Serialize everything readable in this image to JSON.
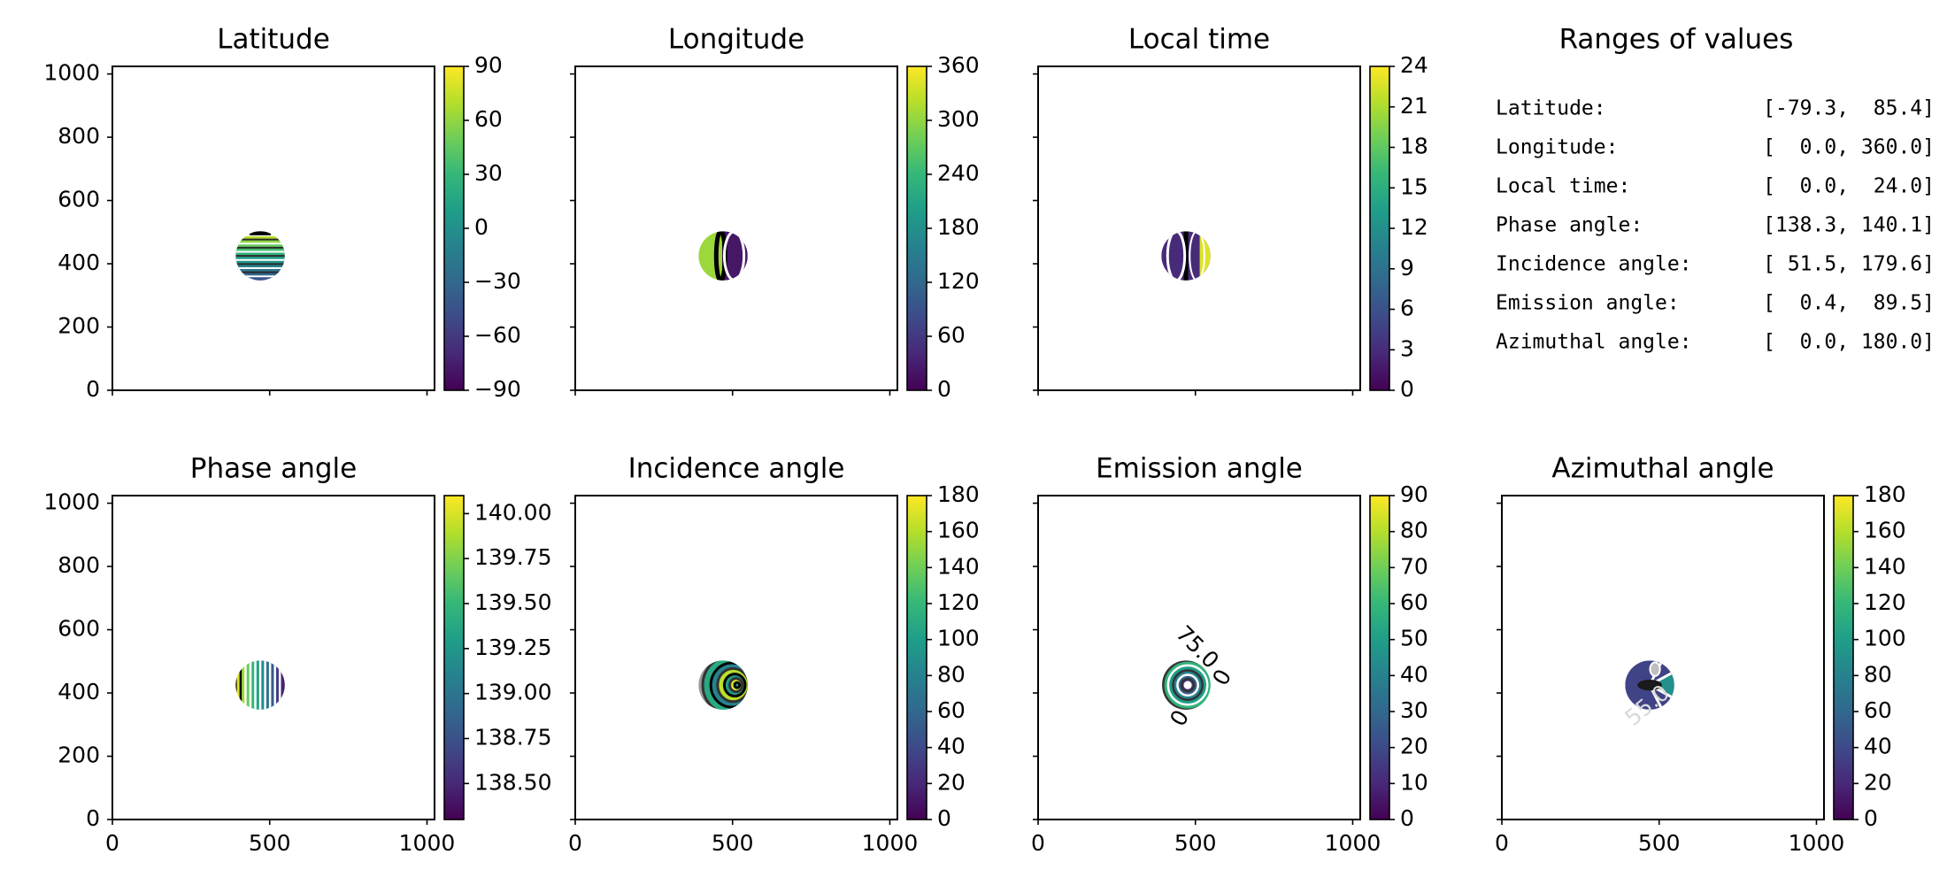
{
  "colors": {
    "viridis": [
      "#440154",
      "#482878",
      "#3e4a89",
      "#31688e",
      "#26828e",
      "#1f9e89",
      "#35b779",
      "#6ece58",
      "#b5de2b",
      "#fde725"
    ],
    "background": "#ffffff",
    "frame": "#000000"
  },
  "chart_data": [
    {
      "type": "heatmap",
      "title": "Latitude",
      "xlim": [
        0,
        1024
      ],
      "ylim": [
        0,
        1024
      ],
      "xticks": [],
      "yticks": [
        0,
        200,
        400,
        600,
        800,
        1000
      ],
      "disk_center": [
        470,
        425
      ],
      "disk_radius": 78,
      "pattern": "horizontal-bands",
      "colorbar": {
        "min": -90,
        "max": 90,
        "ticks": [
          -90,
          -60,
          -30,
          0,
          30,
          60,
          90
        ],
        "tick_labels": [
          "−90",
          "−60",
          "−30",
          "0",
          "30",
          "60",
          "90"
        ]
      }
    },
    {
      "type": "heatmap",
      "title": "Longitude",
      "xlim": [
        0,
        1024
      ],
      "ylim": [
        0,
        1024
      ],
      "xticks": [],
      "yticks": [],
      "disk_center": [
        470,
        425
      ],
      "disk_radius": 78,
      "pattern": "vertical-halves",
      "colorbar": {
        "min": 0,
        "max": 360,
        "ticks": [
          0,
          60,
          120,
          180,
          240,
          300,
          360
        ],
        "tick_labels": [
          "0",
          "60",
          "120",
          "180",
          "240",
          "300",
          "360"
        ]
      }
    },
    {
      "type": "heatmap",
      "title": "Local time",
      "xlim": [
        0,
        1024
      ],
      "ylim": [
        0,
        1024
      ],
      "xticks": [],
      "yticks": [],
      "disk_center": [
        470,
        425
      ],
      "disk_radius": 78,
      "pattern": "vertical-halves-dark",
      "colorbar": {
        "min": 0,
        "max": 24,
        "ticks": [
          0,
          3,
          6,
          9,
          12,
          15,
          18,
          21,
          24
        ],
        "tick_labels": [
          "0",
          "3",
          "6",
          "9",
          "12",
          "15",
          "18",
          "21",
          "24"
        ]
      }
    },
    {
      "type": "heatmap",
      "title": "Phase angle",
      "xlim": [
        0,
        1024
      ],
      "ylim": [
        0,
        1024
      ],
      "xticks": [
        0,
        500,
        1000
      ],
      "yticks": [
        0,
        200,
        400,
        600,
        800,
        1000
      ],
      "disk_center": [
        470,
        425
      ],
      "disk_radius": 78,
      "pattern": "vertical-stripes",
      "colorbar": {
        "min": 138.3,
        "max": 140.1,
        "ticks": [
          138.5,
          138.75,
          139.0,
          139.25,
          139.5,
          139.75,
          140.0
        ],
        "tick_labels": [
          "138.50",
          "138.75",
          "139.00",
          "139.25",
          "139.50",
          "139.75",
          "140.00"
        ]
      }
    },
    {
      "type": "heatmap",
      "title": "Incidence angle",
      "xlim": [
        0,
        1024
      ],
      "ylim": [
        0,
        1024
      ],
      "xticks": [
        0,
        500,
        1000
      ],
      "yticks": [],
      "disk_center": [
        470,
        425
      ],
      "disk_radius": 78,
      "pattern": "offset-rings",
      "colorbar": {
        "min": 0,
        "max": 180,
        "ticks": [
          0,
          20,
          40,
          60,
          80,
          100,
          120,
          140,
          160,
          180
        ],
        "tick_labels": [
          "0",
          "20",
          "40",
          "60",
          "80",
          "100",
          "120",
          "140",
          "160",
          "180"
        ]
      }
    },
    {
      "type": "heatmap",
      "title": "Emission angle",
      "xlim": [
        0,
        1024
      ],
      "ylim": [
        0,
        1024
      ],
      "xticks": [
        0,
        500,
        1000
      ],
      "yticks": [],
      "disk_center": [
        470,
        425
      ],
      "disk_radius": 78,
      "pattern": "concentric-rings",
      "contour_labels": [
        "75.0",
        "0",
        "0"
      ],
      "colorbar": {
        "min": 0,
        "max": 90,
        "ticks": [
          0,
          10,
          20,
          30,
          40,
          50,
          60,
          70,
          80,
          90
        ],
        "tick_labels": [
          "0",
          "10",
          "20",
          "30",
          "40",
          "50",
          "60",
          "70",
          "80",
          "90"
        ]
      }
    },
    {
      "type": "heatmap",
      "title": "Azimuthal angle",
      "xlim": [
        0,
        1024
      ],
      "ylim": [
        0,
        1024
      ],
      "xticks": [
        0,
        500,
        1000
      ],
      "yticks": [],
      "disk_center": [
        470,
        425
      ],
      "disk_radius": 78,
      "pattern": "radial-sectors",
      "contour_labels": [
        "55.0"
      ],
      "colorbar": {
        "min": 0,
        "max": 180,
        "ticks": [
          0,
          20,
          40,
          60,
          80,
          100,
          120,
          140,
          160,
          180
        ],
        "tick_labels": [
          "0",
          "20",
          "40",
          "60",
          "80",
          "100",
          "120",
          "140",
          "160",
          "180"
        ]
      }
    },
    {
      "type": "table",
      "title": "Ranges of values",
      "rows": [
        {
          "label": "Latitude:",
          "range": "[-79.3,  85.4]"
        },
        {
          "label": "Longitude:",
          "range": "[  0.0, 360.0]"
        },
        {
          "label": "Local time:",
          "range": "[  0.0,  24.0]"
        },
        {
          "label": "Phase angle:",
          "range": "[138.3, 140.1]"
        },
        {
          "label": "Incidence angle:",
          "range": "[ 51.5, 179.6]"
        },
        {
          "label": "Emission angle:",
          "range": "[  0.4,  89.5]"
        },
        {
          "label": "Azimuthal angle:",
          "range": "[  0.0, 180.0]"
        }
      ]
    }
  ]
}
